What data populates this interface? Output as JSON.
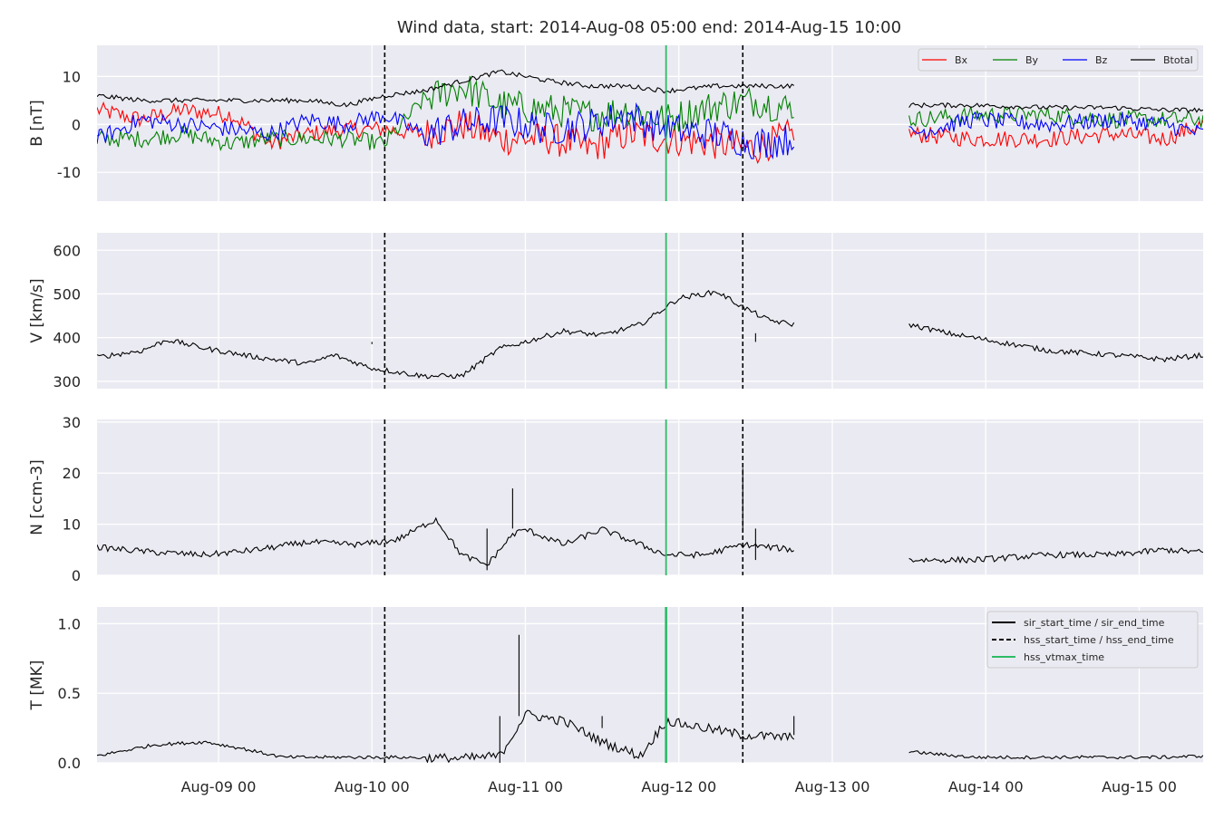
{
  "chart_data": {
    "type": "line",
    "title": "Wind data, start: 2014-Aug-08 05:00  end: 2014-Aug-15 10:00",
    "time_range": [
      "2014-08-08T05:00",
      "2014-08-15T10:00"
    ],
    "x_tick_labels": [
      {
        "t": "2014-08-09T00:00",
        "label": "Aug-09 00"
      },
      {
        "t": "2014-08-10T00:00",
        "label": "Aug-10 00"
      },
      {
        "t": "2014-08-11T00:00",
        "label": "Aug-11 00"
      },
      {
        "t": "2014-08-12T00:00",
        "label": "Aug-12 00"
      },
      {
        "t": "2014-08-13T00:00",
        "label": "Aug-13 00"
      },
      {
        "t": "2014-08-14T00:00",
        "label": "Aug-14 00"
      },
      {
        "t": "2014-08-15T00:00",
        "label": "Aug-15 00"
      }
    ],
    "events": {
      "hss_start_time": "2014-08-10T02:00",
      "hss_end_time": "2014-08-12T10:00",
      "hss_vtmax_time": "2014-08-11T22:00"
    },
    "data_gap": [
      "2014-08-12T18:00",
      "2014-08-13T12:00"
    ],
    "panels": [
      {
        "id": "B",
        "ylabel": "B [nT]",
        "ylim": [
          -16,
          16.5
        ],
        "yticks": [
          -10,
          0,
          10
        ],
        "legend": "top-right",
        "series": [
          {
            "name": "Bx",
            "color": "#ff0000",
            "points": [
              [
                "2014-08-08T05:00",
                3
              ],
              [
                "2014-08-08T12:00",
                1
              ],
              [
                "2014-08-08T18:00",
                3
              ],
              [
                "2014-08-09T02:00",
                2
              ],
              [
                "2014-08-09T08:00",
                -4
              ],
              [
                "2014-08-09T14:00",
                -2
              ],
              [
                "2014-08-09T20:00",
                -1
              ],
              [
                "2014-08-10T02:00",
                -1
              ],
              [
                "2014-08-10T08:00",
                -2
              ],
              [
                "2014-08-10T14:00",
                0
              ],
              [
                "2014-08-10T20:00",
                -3
              ],
              [
                "2014-08-11T04:00",
                -3
              ],
              [
                "2014-08-11T10:00",
                -5
              ],
              [
                "2014-08-11T16:00",
                -2
              ],
              [
                "2014-08-11T22:00",
                -3
              ],
              [
                "2014-08-12T06:00",
                -4
              ],
              [
                "2014-08-12T12:00",
                -5
              ],
              [
                "2014-08-12T18:00",
                -2
              ],
              [
                "2014-08-13T12:00",
                -2
              ],
              [
                "2014-08-13T22:00",
                -3
              ],
              [
                "2014-08-14T10:00",
                -3
              ],
              [
                "2014-08-14T20:00",
                -2
              ],
              [
                "2014-08-15T04:00",
                -3
              ],
              [
                "2014-08-15T10:00",
                0
              ]
            ]
          },
          {
            "name": "By",
            "color": "#008000",
            "points": [
              [
                "2014-08-08T05:00",
                -3
              ],
              [
                "2014-08-08T12:00",
                -3
              ],
              [
                "2014-08-08T18:00",
                -2
              ],
              [
                "2014-08-09T02:00",
                -4
              ],
              [
                "2014-08-09T08:00",
                -3
              ],
              [
                "2014-08-09T14:00",
                -3
              ],
              [
                "2014-08-09T20:00",
                -3
              ],
              [
                "2014-08-10T02:00",
                -4
              ],
              [
                "2014-08-10T08:00",
                5
              ],
              [
                "2014-08-10T14:00",
                8
              ],
              [
                "2014-08-10T20:00",
                4
              ],
              [
                "2014-08-11T04:00",
                3
              ],
              [
                "2014-08-11T10:00",
                2
              ],
              [
                "2014-08-11T16:00",
                3
              ],
              [
                "2014-08-11T22:00",
                1
              ],
              [
                "2014-08-12T06:00",
                4
              ],
              [
                "2014-08-12T12:00",
                5
              ],
              [
                "2014-08-12T18:00",
                3
              ],
              [
                "2014-08-13T12:00",
                1
              ],
              [
                "2014-08-13T22:00",
                2
              ],
              [
                "2014-08-14T10:00",
                2
              ],
              [
                "2014-08-14T20:00",
                1
              ],
              [
                "2014-08-15T04:00",
                1
              ],
              [
                "2014-08-15T10:00",
                1
              ]
            ]
          },
          {
            "name": "Bz",
            "color": "#0000ff",
            "points": [
              [
                "2014-08-08T05:00",
                -3
              ],
              [
                "2014-08-08T12:00",
                1
              ],
              [
                "2014-08-08T18:00",
                0
              ],
              [
                "2014-08-09T02:00",
                -1
              ],
              [
                "2014-08-09T08:00",
                -2
              ],
              [
                "2014-08-09T14:00",
                1
              ],
              [
                "2014-08-09T20:00",
                0
              ],
              [
                "2014-08-10T02:00",
                2
              ],
              [
                "2014-08-10T08:00",
                -2
              ],
              [
                "2014-08-10T14:00",
                0
              ],
              [
                "2014-08-10T20:00",
                1
              ],
              [
                "2014-08-11T04:00",
                -1
              ],
              [
                "2014-08-11T10:00",
                0
              ],
              [
                "2014-08-11T16:00",
                2
              ],
              [
                "2014-08-11T22:00",
                -1
              ],
              [
                "2014-08-12T06:00",
                -2
              ],
              [
                "2014-08-12T12:00",
                -4
              ],
              [
                "2014-08-12T18:00",
                -3
              ],
              [
                "2014-08-13T12:00",
                -2
              ],
              [
                "2014-08-13T22:00",
                1
              ],
              [
                "2014-08-14T10:00",
                0
              ],
              [
                "2014-08-14T20:00",
                1
              ],
              [
                "2014-08-15T04:00",
                0
              ],
              [
                "2014-08-15T10:00",
                -2
              ]
            ]
          },
          {
            "name": "Btotal",
            "color": "#000000",
            "points": [
              [
                "2014-08-08T05:00",
                6
              ],
              [
                "2014-08-08T12:00",
                5
              ],
              [
                "2014-08-08T18:00",
                5
              ],
              [
                "2014-08-09T02:00",
                5
              ],
              [
                "2014-08-09T08:00",
                5
              ],
              [
                "2014-08-09T14:00",
                5
              ],
              [
                "2014-08-09T20:00",
                4
              ],
              [
                "2014-08-10T02:00",
                6
              ],
              [
                "2014-08-10T08:00",
                7
              ],
              [
                "2014-08-10T14:00",
                9
              ],
              [
                "2014-08-10T20:00",
                11
              ],
              [
                "2014-08-11T04:00",
                9
              ],
              [
                "2014-08-11T10:00",
                8
              ],
              [
                "2014-08-11T16:00",
                8
              ],
              [
                "2014-08-11T22:00",
                7
              ],
              [
                "2014-08-12T06:00",
                8
              ],
              [
                "2014-08-12T12:00",
                8
              ],
              [
                "2014-08-12T18:00",
                8
              ],
              [
                "2014-08-13T12:00",
                4
              ],
              [
                "2014-08-13T22:00",
                4
              ],
              [
                "2014-08-14T10:00",
                3.5
              ],
              [
                "2014-08-14T20:00",
                3.5
              ],
              [
                "2014-08-15T04:00",
                3
              ],
              [
                "2014-08-15T10:00",
                3
              ]
            ]
          }
        ]
      },
      {
        "id": "V",
        "ylabel": "V [km/s]",
        "ylim": [
          283,
          640
        ],
        "yticks": [
          300,
          400,
          500,
          600
        ],
        "series": [
          {
            "name": "V",
            "color": "#000000",
            "points": [
              [
                "2014-08-08T05:00",
                355
              ],
              [
                "2014-08-08T12:00",
                370
              ],
              [
                "2014-08-08T16:00",
                395
              ],
              [
                "2014-08-08T22:00",
                375
              ],
              [
                "2014-08-09T06:00",
                355
              ],
              [
                "2014-08-09T14:00",
                340
              ],
              [
                "2014-08-09T18:00",
                360
              ],
              [
                "2014-08-10T00:00",
                330
              ],
              [
                "2014-08-10T08:00",
                312
              ],
              [
                "2014-08-10T14:00",
                312
              ],
              [
                "2014-08-10T20:00",
                375
              ],
              [
                "2014-08-11T00:00",
                390
              ],
              [
                "2014-08-11T06:00",
                415
              ],
              [
                "2014-08-11T12:00",
                405
              ],
              [
                "2014-08-11T18:00",
                430
              ],
              [
                "2014-08-11T22:00",
                470
              ],
              [
                "2014-08-12T00:00",
                490
              ],
              [
                "2014-08-12T06:00",
                505
              ],
              [
                "2014-08-12T10:00",
                470
              ],
              [
                "2014-08-12T14:00",
                440
              ],
              [
                "2014-08-12T18:00",
                430
              ],
              [
                "2014-08-13T12:00",
                430
              ],
              [
                "2014-08-13T18:00",
                410
              ],
              [
                "2014-08-14T02:00",
                390
              ],
              [
                "2014-08-14T10:00",
                370
              ],
              [
                "2014-08-14T20:00",
                360
              ],
              [
                "2014-08-15T04:00",
                350
              ],
              [
                "2014-08-15T10:00",
                360
              ]
            ]
          }
        ]
      },
      {
        "id": "N",
        "ylabel": "N [ccm-3]",
        "ylim": [
          0,
          30.5
        ],
        "yticks": [
          0,
          10,
          20,
          30
        ],
        "series": [
          {
            "name": "N",
            "color": "#000000",
            "points": [
              [
                "2014-08-08T05:00",
                5.5
              ],
              [
                "2014-08-08T14:00",
                4.5
              ],
              [
                "2014-08-08T22:00",
                4
              ],
              [
                "2014-08-09T06:00",
                5
              ],
              [
                "2014-08-09T14:00",
                6.5
              ],
              [
                "2014-08-09T22:00",
                6
              ],
              [
                "2014-08-10T04:00",
                7
              ],
              [
                "2014-08-10T10:00",
                11
              ],
              [
                "2014-08-10T14:00",
                4
              ],
              [
                "2014-08-10T18:00",
                2
              ],
              [
                "2014-08-10T22:00",
                8
              ],
              [
                "2014-08-11T00:00",
                9
              ],
              [
                "2014-08-11T06:00",
                6
              ],
              [
                "2014-08-11T12:00",
                9
              ],
              [
                "2014-08-11T18:00",
                6
              ],
              [
                "2014-08-11T22:00",
                4
              ],
              [
                "2014-08-12T04:00",
                4
              ],
              [
                "2014-08-12T10:00",
                6
              ],
              [
                "2014-08-12T18:00",
                5
              ],
              [
                "2014-08-13T12:00",
                3
              ],
              [
                "2014-08-13T22:00",
                3
              ],
              [
                "2014-08-14T10:00",
                4
              ],
              [
                "2014-08-14T20:00",
                4
              ],
              [
                "2014-08-15T04:00",
                5
              ],
              [
                "2014-08-15T10:00",
                4.5
              ]
            ]
          }
        ]
      },
      {
        "id": "T",
        "ylabel": "T [MK]",
        "ylim": [
          0,
          1.12
        ],
        "yticks": [
          0.0,
          0.5,
          1.0
        ],
        "yticklabels": [
          "0.0",
          "0.5",
          "1.0"
        ],
        "legend": "top-right",
        "series": [
          {
            "name": "T",
            "color": "#000000",
            "points": [
              [
                "2014-08-08T05:00",
                0.05
              ],
              [
                "2014-08-08T14:00",
                0.13
              ],
              [
                "2014-08-08T22:00",
                0.15
              ],
              [
                "2014-08-09T04:00",
                0.1
              ],
              [
                "2014-08-09T10:00",
                0.04
              ],
              [
                "2014-08-09T20:00",
                0.04
              ],
              [
                "2014-08-10T04:00",
                0.04
              ],
              [
                "2014-08-10T14:00",
                0.03
              ],
              [
                "2014-08-10T20:00",
                0.05
              ],
              [
                "2014-08-11T00:00",
                0.35
              ],
              [
                "2014-08-11T06:00",
                0.3
              ],
              [
                "2014-08-11T12:00",
                0.15
              ],
              [
                "2014-08-11T18:00",
                0.05
              ],
              [
                "2014-08-11T22:00",
                0.3
              ],
              [
                "2014-08-12T04:00",
                0.25
              ],
              [
                "2014-08-12T10:00",
                0.2
              ],
              [
                "2014-08-12T18:00",
                0.18
              ],
              [
                "2014-08-13T12:00",
                0.08
              ],
              [
                "2014-08-13T22:00",
                0.04
              ],
              [
                "2014-08-14T10:00",
                0.04
              ],
              [
                "2014-08-14T20:00",
                0.04
              ],
              [
                "2014-08-15T04:00",
                0.04
              ],
              [
                "2014-08-15T10:00",
                0.05
              ]
            ]
          }
        ]
      }
    ],
    "legend_events": [
      {
        "label": "sir_start_time / sir_end_time",
        "style": "solid",
        "color": "#000000"
      },
      {
        "label": "hss_start_time / hss_end_time",
        "style": "dashed",
        "color": "#000000"
      },
      {
        "label": "hss_vtmax_time",
        "style": "solid",
        "color": "#2ebb66"
      }
    ],
    "spikes": {
      "V": [
        [
          "2014-08-10T00:00",
          385
        ],
        [
          "2014-08-11T22:00",
          540
        ],
        [
          "2014-08-12T12:00",
          410
        ]
      ],
      "N": [
        [
          "2014-08-10T18:00",
          1
        ],
        [
          "2014-08-10T22:00",
          17
        ],
        [
          "2014-08-12T10:00",
          21
        ],
        [
          "2014-08-12T12:00",
          3
        ]
      ],
      "T": [
        [
          "2014-08-10T20:00",
          0.0
        ],
        [
          "2014-08-10T23:00",
          0.92
        ],
        [
          "2014-08-11T12:00",
          0.25
        ],
        [
          "2014-08-12T18:00",
          0.2
        ]
      ]
    },
    "background_color": "#eaeaf2",
    "grid_color": "#ffffff",
    "grid": true
  }
}
